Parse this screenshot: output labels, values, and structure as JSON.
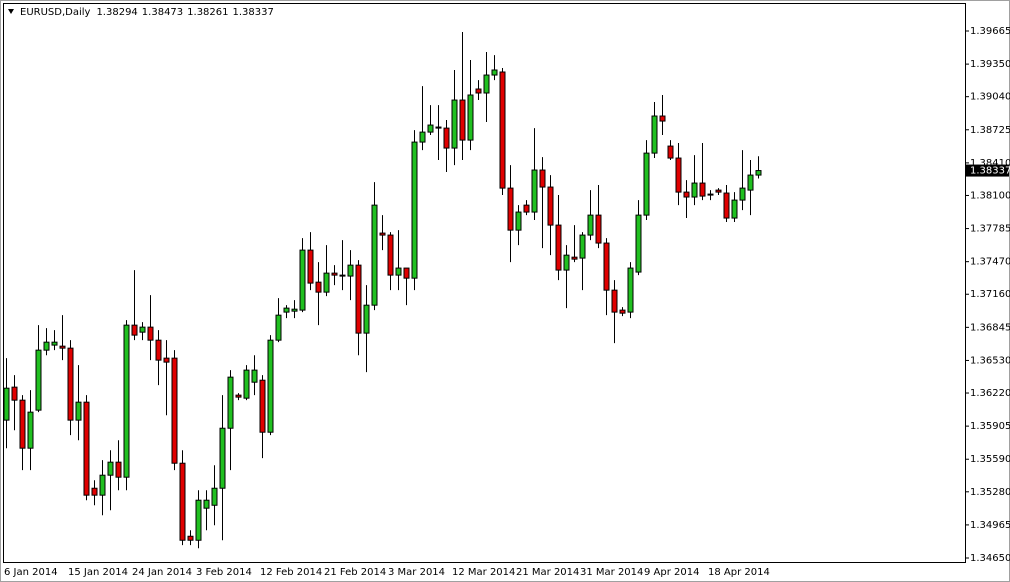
{
  "chart_data": {
    "type": "candlestick",
    "title": "EURUSD,Daily",
    "up_color": "#20c020",
    "down_color": "#e00000",
    "outline": "#000000",
    "ylim": [
      1.34612,
      1.39922
    ],
    "yticks": [
      {
        "value": 1.3465,
        "label": "1.34650"
      },
      1.34965,
      {
        "value": 1.3528,
        "label": "1.35280"
      },
      {
        "value": 1.3559,
        "label": "1.35590"
      },
      1.35905,
      {
        "value": 1.3622,
        "label": "1.36220"
      },
      {
        "value": 1.3653,
        "label": "1.36530"
      },
      1.36845,
      {
        "value": 1.3716,
        "label": "1.37160"
      },
      {
        "value": 1.3747,
        "label": "1.37470"
      },
      1.37785,
      {
        "value": 1.381,
        "label": "1.38100"
      },
      {
        "value": 1.3841,
        "label": "1.38410"
      },
      1.38725,
      {
        "value": 1.3904,
        "label": "1.39040"
      },
      {
        "value": 1.3935,
        "label": "1.39350"
      },
      1.39665
    ],
    "categories": [
      "6 Jan 2014",
      null,
      null,
      null,
      null,
      null,
      null,
      null,
      "15 Jan 2014",
      null,
      null,
      null,
      null,
      null,
      null,
      null,
      "24 Jan 2014",
      null,
      null,
      null,
      null,
      null,
      null,
      null,
      "3 Feb 2014",
      null,
      null,
      null,
      null,
      null,
      null,
      null,
      "12 Feb 2014",
      null,
      null,
      null,
      null,
      null,
      null,
      null,
      "21 Feb 2014",
      null,
      null,
      null,
      null,
      null,
      null,
      null,
      "3 Mar 2014",
      null,
      null,
      null,
      null,
      null,
      null,
      null,
      "12 Mar 2014",
      null,
      null,
      null,
      null,
      null,
      null,
      null,
      "21 Mar 2014",
      null,
      null,
      null,
      null,
      null,
      null,
      null,
      "31 Mar 2014",
      null,
      null,
      null,
      null,
      null,
      null,
      null,
      "9 Apr 2014",
      null,
      null,
      null,
      null,
      null,
      null,
      null,
      "18 Apr 2014",
      null,
      null,
      null,
      null,
      null,
      null
    ],
    "open": [
      1.35962,
      1.36276,
      1.36152,
      1.35695,
      1.36057,
      1.36628,
      1.36676,
      1.36666,
      1.36647,
      1.35962,
      1.36133,
      1.35314,
      1.35248,
      1.35438,
      1.35562,
      1.35419,
      1.36866,
      1.36799,
      1.36847,
      1.36723,
      1.36552,
      1.36552,
      1.35552,
      1.34857,
      1.34819,
      1.35124,
      1.35152,
      1.35314,
      1.35885,
      1.362,
      1.36171,
      1.36323,
      1.36342,
      1.35847,
      1.36723,
      1.3699,
      1.36999,
      1.37009,
      1.3758,
      1.37275,
      1.3718,
      1.37361,
      1.37342,
      1.37333,
      1.37437,
      1.3679,
      1.37056,
      1.37742,
      1.37723,
      1.37342,
      1.37409,
      1.37313,
      1.38608,
      1.38703,
      1.38751,
      1.38741,
      1.38551,
      1.39008,
      1.38627,
      1.39113,
      1.39075,
      1.39246,
      1.39275,
      1.3817,
      1.3777,
      1.38008,
      1.37942,
      1.38342,
      1.3818,
      1.37818,
      1.3739,
      1.37513,
      1.37504,
      1.37723,
      1.37913,
      1.37647,
      1.37199,
      1.37009,
      1.3699,
      1.37371,
      1.37913,
      1.38503,
      1.38856,
      1.3857,
      1.38456,
      1.38132,
      1.38085,
      1.38218,
      1.38113,
      1.38151,
      1.38123,
      1.37885,
      1.38056,
      1.38151,
      1.38294
    ],
    "high": [
      1.36552,
      1.3639,
      1.362,
      1.36247,
      1.36866,
      1.36837,
      1.36818,
      1.36961,
      1.36723,
      1.36485,
      1.362,
      1.3539,
      1.35581,
      1.35676,
      1.35771,
      1.36914,
      1.3739,
      1.36895,
      1.37152,
      1.36818,
      1.36723,
      1.36628,
      1.35676,
      1.34914,
      1.35295,
      1.35295,
      1.35533,
      1.362,
      1.36438,
      1.36219,
      1.36485,
      1.3658,
      1.3639,
      1.36771,
      1.37123,
      1.37056,
      1.37104,
      1.37694,
      1.37751,
      1.37466,
      1.37628,
      1.37437,
      1.37675,
      1.3758,
      1.37485,
      1.37247,
      1.38227,
      1.37913,
      1.37751,
      1.3777,
      1.37409,
      1.38722,
      1.39141,
      1.3896,
      1.3896,
      1.38818,
      1.39294,
      1.39655,
      1.39389,
      1.39198,
      1.39465,
      1.39436,
      1.39313,
      1.38389,
      1.38008,
      1.38056,
      1.38741,
      1.38465,
      1.38294,
      1.38104,
      1.37628,
      1.37818,
      1.37751,
      1.38151,
      1.38199,
      1.37694,
      1.37294,
      1.37037,
      1.37466,
      1.38056,
      1.38627,
      1.38989,
      1.39056,
      1.38627,
      1.38599,
      1.38246,
      1.38484,
      1.38599,
      1.38151,
      1.3817,
      1.38199,
      1.38132,
      1.38532,
      1.38437,
      1.38473
    ],
    "low": [
      1.35695,
      1.35866,
      1.35486,
      1.35486,
      1.36038,
      1.3658,
      1.36628,
      1.36533,
      1.35819,
      1.35771,
      1.352,
      1.35152,
      1.35057,
      1.35105,
      1.35295,
      1.35295,
      1.36723,
      1.36723,
      1.36533,
      1.36295,
      1.36009,
      1.35486,
      1.34772,
      1.34772,
      1.34743,
      1.34914,
      1.34962,
      1.34819,
      1.35486,
      1.36152,
      1.36152,
      1.362,
      1.356,
      1.35819,
      1.36704,
      1.36933,
      1.36933,
      1.3699,
      1.37199,
      1.36866,
      1.37142,
      1.37247,
      1.37199,
      1.37104,
      1.3658,
      1.36419,
      1.37009,
      1.3758,
      1.37199,
      1.37199,
      1.37056,
      1.37199,
      1.38532,
      1.38675,
      1.38437,
      1.38323,
      1.38389,
      1.38437,
      1.38532,
      1.39008,
      1.38799,
      1.39198,
      1.38104,
      1.37466,
      1.37628,
      1.37913,
      1.37866,
      1.37599,
      1.37532,
      1.37294,
      1.37028,
      1.37466,
      1.37199,
      1.37675,
      1.37599,
      1.36961,
      1.36695,
      1.36952,
      1.36933,
      1.37342,
      1.37866,
      1.38456,
      1.38675,
      1.38437,
      1.38008,
      1.37885,
      1.38008,
      1.38056,
      1.38056,
      1.38104,
      1.37847,
      1.37847,
      1.37961,
      1.37913,
      1.38261
    ],
    "close": [
      1.36266,
      1.36152,
      1.35695,
      1.36038,
      1.36628,
      1.36704,
      1.36704,
      1.36647,
      1.35962,
      1.36133,
      1.35248,
      1.35248,
      1.35438,
      1.35562,
      1.35419,
      1.36866,
      1.36771,
      1.36847,
      1.36723,
      1.36533,
      1.36514,
      1.35552,
      1.34819,
      1.34819,
      1.352,
      1.352,
      1.35314,
      1.35885,
      1.36371,
      1.36181,
      1.36438,
      1.36438,
      1.35847,
      1.36723,
      1.36961,
      1.37028,
      1.37018,
      1.3758,
      1.37266,
      1.3718,
      1.37361,
      1.37342,
      1.37333,
      1.37437,
      1.3679,
      1.37056,
      1.38008,
      1.37723,
      1.37342,
      1.37409,
      1.37313,
      1.38608,
      1.38703,
      1.3877,
      1.38741,
      1.38551,
      1.39008,
      1.38627,
      1.39056,
      1.39075,
      1.39246,
      1.39294,
      1.3817,
      1.3777,
      1.37942,
      1.37942,
      1.38342,
      1.3818,
      1.37818,
      1.3739,
      1.37532,
      1.37494,
      1.37723,
      1.37913,
      1.37647,
      1.37199,
      1.3699,
      1.3698,
      1.37409,
      1.37913,
      1.38503,
      1.38856,
      1.38808,
      1.38456,
      1.38132,
      1.38085,
      1.38218,
      1.38094,
      1.38104,
      1.38132,
      1.37885,
      1.38056,
      1.3817,
      1.38294,
      1.38337
    ]
  }
}
